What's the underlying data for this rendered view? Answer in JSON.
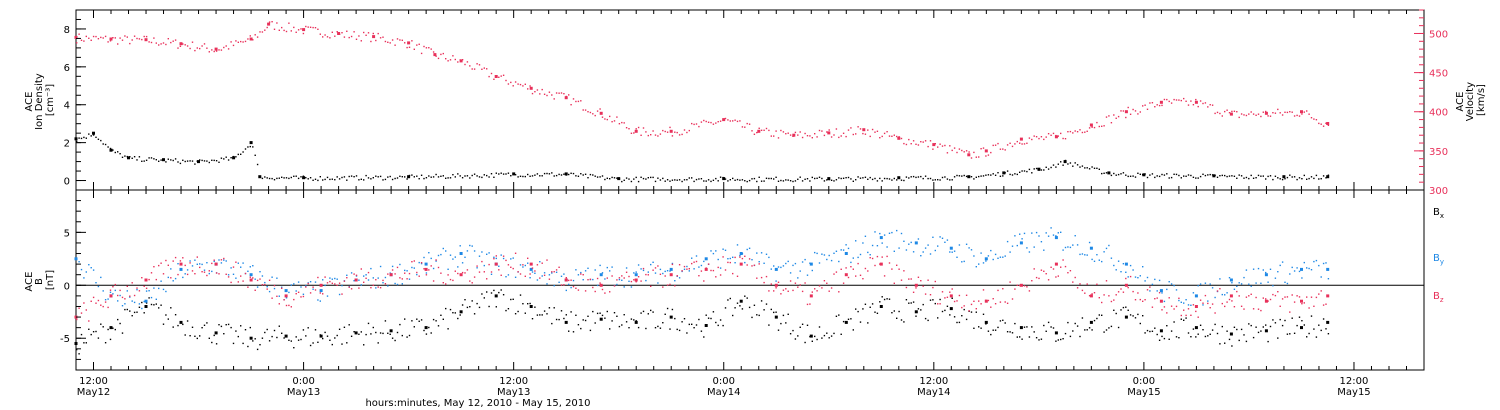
{
  "chart_data": [
    {
      "type": "scatter",
      "panel": "top",
      "left_axis": {
        "label_lines": [
          "ACE",
          "Ion Density"
        ],
        "unit": "[cm⁻³]",
        "ylim": [
          -0.5,
          9
        ],
        "ticks": [
          0,
          2,
          4,
          6,
          8
        ],
        "color": "#000000"
      },
      "right_axis": {
        "label_lines": [
          "ACE",
          "Velocity"
        ],
        "unit": "[km/s]",
        "ylim": [
          300,
          530
        ],
        "ticks": [
          300,
          350,
          400,
          450,
          500
        ],
        "color": "#e8305a"
      },
      "series": [
        {
          "axis": "right",
          "color": "#e8305a",
          "x": [
            "May12 11:00",
            "May12 13:00",
            "May12 15:00",
            "May12 17:00",
            "May12 19:00",
            "May12 21:00",
            "May12 22:00",
            "May13 00:00",
            "May13 02:00",
            "May13 04:00",
            "May13 06:00",
            "May13 07:30",
            "May13 09:00",
            "May13 11:00",
            "May13 13:00",
            "May13 15:00",
            "May13 17:00",
            "May13 19:00",
            "May13 21:00",
            "May14 00:00",
            "May14 02:00",
            "May14 04:00",
            "May14 06:00",
            "May14 08:00",
            "May14 10:00",
            "May14 12:00",
            "May14 14:00",
            "May14 15:00",
            "May14 17:00",
            "May14 19:00",
            "May14 21:00",
            "May14 23:00",
            "May15 01:00",
            "May15 03:00",
            "May15 05:00",
            "May15 07:00",
            "May15 09:00",
            "May15 10:30"
          ],
          "y": [
            495,
            493,
            492,
            487,
            480,
            493,
            512,
            505,
            500,
            496,
            488,
            473,
            465,
            445,
            430,
            418,
            398,
            375,
            375,
            390,
            375,
            370,
            373,
            377,
            366,
            358,
            345,
            350,
            365,
            368,
            383,
            400,
            412,
            412,
            397,
            398,
            400,
            385
          ]
        },
        {
          "axis": "left",
          "color": "#000000",
          "x": [
            "May12 11:00",
            "May12 12:00",
            "May12 13:00",
            "May12 14:00",
            "May12 16:00",
            "May12 18:00",
            "May12 20:00",
            "May12 21:00",
            "May12 21:30",
            "May13 00:00",
            "May13 06:00",
            "May13 12:00",
            "May13 15:00",
            "May13 18:00",
            "May14 00:00",
            "May14 06:00",
            "May14 10:00",
            "May14 14:00",
            "May14 16:00",
            "May14 18:00",
            "May14 19:30",
            "May14 22:00",
            "May15 00:00",
            "May15 04:00",
            "May15 08:00",
            "May15 10:30"
          ],
          "y": [
            2.2,
            2.5,
            1.6,
            1.2,
            1.1,
            1.0,
            1.2,
            2.0,
            0.2,
            0.15,
            0.2,
            0.35,
            0.35,
            0.1,
            0.1,
            0.1,
            0.15,
            0.2,
            0.4,
            0.6,
            1.0,
            0.4,
            0.3,
            0.25,
            0.2,
            0.2
          ]
        }
      ]
    },
    {
      "type": "scatter",
      "panel": "bottom",
      "left_axis": {
        "label_lines": [
          "ACE",
          "B"
        ],
        "unit": "[nT]",
        "ylim": [
          -8,
          9
        ],
        "ticks": [
          -5,
          0,
          5
        ],
        "color": "#000000"
      },
      "zero_line": true,
      "legend": {
        "placement": "right",
        "entries": [
          {
            "base": "B",
            "sub": "x",
            "color": "#000000"
          },
          {
            "base": "B",
            "sub": "y",
            "color": "#1e88e5"
          },
          {
            "base": "B",
            "sub": "z",
            "color": "#e8305a"
          }
        ]
      },
      "series": [
        {
          "name": "Bx",
          "color": "#000000",
          "x": [
            "May12 11:00",
            "May12 13:00",
            "May12 15:00",
            "May12 17:00",
            "May12 19:00",
            "May12 21:00",
            "May12 23:00",
            "May13 01:00",
            "May13 03:00",
            "May13 05:00",
            "May13 07:00",
            "May13 09:00",
            "May13 11:00",
            "May13 13:00",
            "May13 15:00",
            "May13 17:00",
            "May13 19:00",
            "May13 21:00",
            "May13 23:00",
            "May14 01:00",
            "May14 03:00",
            "May14 05:00",
            "May14 07:00",
            "May14 09:00",
            "May14 11:00",
            "May14 13:00",
            "May14 15:00",
            "May14 17:00",
            "May14 19:00",
            "May14 21:00",
            "May14 23:00",
            "May15 01:00",
            "May15 03:00",
            "May15 05:00",
            "May15 07:00",
            "May15 09:00",
            "May15 10:30"
          ],
          "y": [
            -5.5,
            -4.0,
            -2.0,
            -3.5,
            -4.5,
            -5.0,
            -4.8,
            -4.8,
            -4.5,
            -4.3,
            -4.0,
            -2.5,
            -1.0,
            -2.0,
            -3.5,
            -3.2,
            -3.5,
            -3.0,
            -3.8,
            -1.5,
            -3.0,
            -4.8,
            -3.5,
            -2.0,
            -2.5,
            -2.2,
            -3.5,
            -4.0,
            -4.5,
            -3.5,
            -3.0,
            -4.3,
            -4.0,
            -4.6,
            -4.3,
            -4.0,
            -3.5
          ]
        },
        {
          "name": "By",
          "color": "#1e88e5",
          "x": [
            "May12 11:00",
            "May12 13:00",
            "May12 15:00",
            "May12 17:00",
            "May12 19:00",
            "May12 21:00",
            "May12 23:00",
            "May13 01:00",
            "May13 03:00",
            "May13 05:00",
            "May13 07:00",
            "May13 09:00",
            "May13 11:00",
            "May13 13:00",
            "May13 15:00",
            "May13 17:00",
            "May13 19:00",
            "May13 21:00",
            "May13 23:00",
            "May14 01:00",
            "May14 03:00",
            "May14 05:00",
            "May14 07:00",
            "May14 09:00",
            "May14 11:00",
            "May14 13:00",
            "May14 15:00",
            "May14 17:00",
            "May14 19:00",
            "May14 21:00",
            "May14 23:00",
            "May15 01:00",
            "May15 03:00",
            "May15 05:00",
            "May15 07:00",
            "May15 09:00",
            "May15 10:30"
          ],
          "y": [
            2.5,
            -1.0,
            -1.5,
            1.5,
            2.0,
            1.0,
            -0.5,
            -0.5,
            0.5,
            1.0,
            2.0,
            3.0,
            2.0,
            1.5,
            0.5,
            1.0,
            1.0,
            1.5,
            2.5,
            3.0,
            1.5,
            2.0,
            3.0,
            4.5,
            4.0,
            3.5,
            2.5,
            4.0,
            4.5,
            3.5,
            2.0,
            -0.5,
            -1.0,
            0.5,
            1.0,
            1.5,
            1.5
          ]
        },
        {
          "name": "Bz",
          "color": "#e8305a",
          "x": [
            "May12 11:00",
            "May12 13:00",
            "May12 15:00",
            "May12 17:00",
            "May12 19:00",
            "May12 21:00",
            "May12 23:00",
            "May13 01:00",
            "May13 03:00",
            "May13 05:00",
            "May13 07:00",
            "May13 09:00",
            "May13 11:00",
            "May13 13:00",
            "May13 15:00",
            "May13 17:00",
            "May13 19:00",
            "May13 21:00",
            "May13 23:00",
            "May14 01:00",
            "May14 03:00",
            "May14 05:00",
            "May14 07:00",
            "May14 09:00",
            "May14 11:00",
            "May14 13:00",
            "May14 15:00",
            "May14 17:00",
            "May14 19:00",
            "May14 21:00",
            "May14 23:00",
            "May15 01:00",
            "May15 03:00",
            "May15 05:00",
            "May15 07:00",
            "May15 09:00",
            "May15 10:30"
          ],
          "y": [
            -3.0,
            -1.0,
            0.5,
            2.0,
            2.0,
            0.5,
            -1.0,
            0.0,
            0.5,
            1.0,
            1.5,
            1.0,
            2.0,
            2.0,
            0.5,
            0.0,
            0.5,
            1.0,
            1.5,
            2.0,
            0.0,
            -1.0,
            1.0,
            2.0,
            0.0,
            -1.0,
            -1.5,
            0.0,
            2.0,
            -1.0,
            0.0,
            -1.5,
            -2.0,
            -1.0,
            -1.5,
            -1.5,
            -1.0
          ]
        }
      ]
    }
  ],
  "time_axis": {
    "tick_labels": [
      {
        "time": "12:00",
        "date": "May12"
      },
      {
        "time": "0:00",
        "date": "May13"
      },
      {
        "time": "12:00",
        "date": "May13"
      },
      {
        "time": "0:00",
        "date": "May14"
      },
      {
        "time": "12:00",
        "date": "May14"
      },
      {
        "time": "0:00",
        "date": "May15"
      },
      {
        "time": "12:00",
        "date": "May15"
      }
    ],
    "xlim": [
      "May12 11:00",
      "May15 16:00"
    ],
    "title": "hours:minutes, May 12, 2010 - May 15, 2010"
  }
}
